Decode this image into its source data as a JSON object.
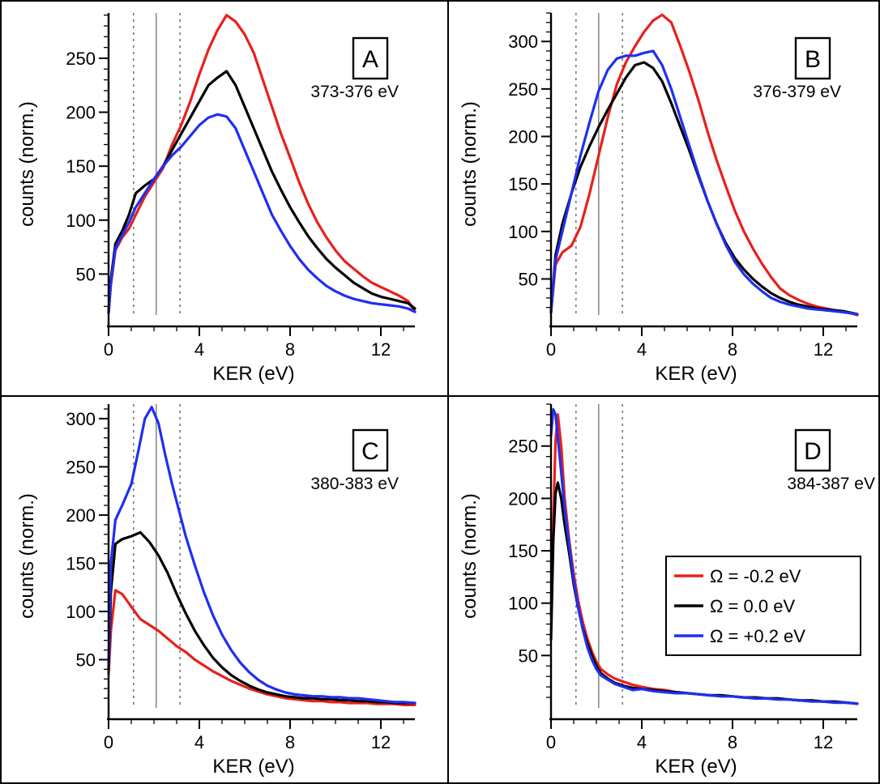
{
  "chart_data": [
    {
      "type": "line",
      "panel_label": "A",
      "energy_range": "373-376 eV",
      "xlabel": "KER (eV)",
      "ylabel": "counts (norm.)",
      "xlim": [
        0,
        13.5
      ],
      "ylim": [
        12,
        292
      ],
      "xticks": [
        0,
        4,
        8,
        12
      ],
      "yticks": [
        50,
        100,
        150,
        200,
        250
      ],
      "reference_lines": {
        "solid": [
          2.1
        ],
        "dotted": [
          1.1,
          3.15
        ]
      },
      "series": [
        {
          "color": "#e8201b",
          "x": [
            0,
            0.1,
            0.3,
            0.6,
            0.9,
            1.2,
            1.6,
            2.0,
            2.4,
            2.8,
            3.2,
            3.6,
            4.0,
            4.4,
            4.8,
            5.2,
            5.6,
            6.0,
            6.4,
            6.8,
            7.2,
            7.6,
            8.0,
            8.4,
            8.8,
            9.2,
            9.6,
            10.0,
            10.4,
            10.8,
            11.2,
            11.6,
            12.0,
            12.4,
            12.8,
            13.2,
            13.5
          ],
          "y": [
            14,
            40,
            72,
            84,
            92,
            105,
            122,
            135,
            148,
            170,
            188,
            210,
            235,
            258,
            276,
            290,
            284,
            272,
            255,
            230,
            205,
            180,
            158,
            135,
            115,
            98,
            84,
            72,
            62,
            55,
            48,
            42,
            38,
            34,
            30,
            25,
            15
          ]
        },
        {
          "color": "#000000",
          "x": [
            0,
            0.1,
            0.3,
            0.6,
            0.9,
            1.2,
            1.6,
            2.0,
            2.4,
            2.8,
            3.2,
            3.6,
            4.0,
            4.4,
            4.8,
            5.2,
            5.6,
            6.0,
            6.4,
            6.8,
            7.2,
            7.6,
            8.0,
            8.4,
            8.8,
            9.2,
            9.6,
            10.0,
            10.4,
            10.8,
            11.2,
            11.6,
            12.0,
            12.4,
            12.8,
            13.2,
            13.5
          ],
          "y": [
            14,
            45,
            78,
            90,
            105,
            125,
            132,
            138,
            150,
            165,
            180,
            195,
            210,
            225,
            232,
            238,
            225,
            205,
            185,
            165,
            145,
            128,
            112,
            98,
            85,
            74,
            64,
            56,
            49,
            42,
            37,
            32,
            29,
            27,
            25,
            23,
            18
          ]
        },
        {
          "color": "#1f2ff0",
          "x": [
            0,
            0.1,
            0.3,
            0.6,
            0.9,
            1.2,
            1.6,
            2.0,
            2.4,
            2.8,
            3.2,
            3.6,
            4.0,
            4.4,
            4.8,
            5.2,
            5.6,
            6.0,
            6.4,
            6.8,
            7.2,
            7.6,
            8.0,
            8.4,
            8.8,
            9.2,
            9.6,
            10.0,
            10.4,
            10.8,
            11.2,
            11.6,
            12.0,
            12.4,
            12.8,
            13.2,
            13.5
          ],
          "y": [
            14,
            42,
            74,
            86,
            98,
            112,
            125,
            138,
            150,
            160,
            168,
            178,
            188,
            195,
            198,
            196,
            185,
            165,
            145,
            125,
            105,
            90,
            76,
            64,
            54,
            46,
            39,
            34,
            30,
            27,
            25,
            23,
            22,
            21,
            20,
            18,
            15
          ]
        }
      ]
    },
    {
      "type": "line",
      "panel_label": "B",
      "energy_range": "376-379 eV",
      "xlabel": "KER (eV)",
      "ylabel": "counts (norm.)",
      "xlim": [
        0,
        13.5
      ],
      "ylim": [
        12,
        330
      ],
      "xticks": [
        0,
        4,
        8,
        12
      ],
      "yticks": [
        50,
        100,
        150,
        200,
        250,
        300
      ],
      "reference_lines": {
        "solid": [
          2.1
        ],
        "dotted": [
          1.1,
          3.15
        ]
      },
      "series": [
        {
          "color": "#e8201b",
          "x": [
            0,
            0.2,
            0.5,
            0.9,
            1.3,
            1.7,
            2.1,
            2.5,
            2.9,
            3.3,
            3.7,
            4.1,
            4.5,
            4.9,
            5.3,
            5.7,
            6.1,
            6.5,
            6.9,
            7.3,
            7.7,
            8.1,
            8.5,
            8.9,
            9.3,
            9.7,
            10.1,
            10.5,
            10.9,
            11.3,
            11.7,
            12.1,
            12.5,
            12.9,
            13.5
          ],
          "y": [
            15,
            65,
            78,
            85,
            105,
            140,
            180,
            220,
            255,
            278,
            295,
            310,
            322,
            328,
            320,
            295,
            268,
            238,
            205,
            175,
            148,
            122,
            100,
            82,
            66,
            52,
            40,
            33,
            28,
            24,
            21,
            19,
            17,
            16,
            12
          ]
        },
        {
          "color": "#000000",
          "x": [
            0,
            0.2,
            0.5,
            0.9,
            1.3,
            1.7,
            2.1,
            2.5,
            2.9,
            3.3,
            3.7,
            4.1,
            4.5,
            4.9,
            5.3,
            5.7,
            6.1,
            6.5,
            6.9,
            7.3,
            7.7,
            8.1,
            8.5,
            8.9,
            9.3,
            9.7,
            10.1,
            10.5,
            10.9,
            11.3,
            11.7,
            12.1,
            12.5,
            12.9,
            13.5
          ],
          "y": [
            15,
            75,
            108,
            140,
            168,
            190,
            210,
            228,
            245,
            262,
            275,
            278,
            272,
            258,
            235,
            210,
            185,
            158,
            132,
            108,
            88,
            72,
            60,
            50,
            42,
            35,
            30,
            26,
            23,
            21,
            19,
            18,
            17,
            16,
            13
          ]
        },
        {
          "color": "#1f2ff0",
          "x": [
            0,
            0.2,
            0.5,
            0.9,
            1.3,
            1.7,
            2.1,
            2.5,
            2.9,
            3.3,
            3.7,
            4.1,
            4.5,
            4.9,
            5.3,
            5.7,
            6.1,
            6.5,
            6.9,
            7.3,
            7.7,
            8.1,
            8.5,
            8.9,
            9.3,
            9.7,
            10.1,
            10.5,
            10.9,
            11.3,
            11.7,
            12.1,
            12.5,
            12.9,
            13.5
          ],
          "y": [
            15,
            70,
            100,
            140,
            180,
            215,
            248,
            270,
            282,
            285,
            285,
            288,
            290,
            275,
            250,
            220,
            190,
            160,
            132,
            108,
            86,
            68,
            55,
            45,
            37,
            30,
            26,
            23,
            21,
            19,
            18,
            17,
            16,
            15,
            13
          ]
        }
      ]
    },
    {
      "type": "line",
      "panel_label": "C",
      "energy_range": "380-383 eV",
      "xlabel": "KER (eV)",
      "ylabel": "counts (norm.)",
      "xlim": [
        0,
        13.5
      ],
      "ylim": [
        0,
        315
      ],
      "xticks": [
        0,
        4,
        8,
        12
      ],
      "yticks": [
        50,
        100,
        150,
        200,
        250,
        300
      ],
      "reference_lines": {
        "solid": [
          2.1
        ],
        "dotted": [
          1.1,
          3.15
        ]
      },
      "series": [
        {
          "color": "#e8201b",
          "x": [
            0,
            0.1,
            0.3,
            0.6,
            1.0,
            1.4,
            1.8,
            2.2,
            2.6,
            3.0,
            3.4,
            3.8,
            4.2,
            4.6,
            5.0,
            5.4,
            5.8,
            6.2,
            6.6,
            7.0,
            7.4,
            7.8,
            8.2,
            8.6,
            9.0,
            9.4,
            9.8,
            10.2,
            10.6,
            11.0,
            11.4,
            11.8,
            12.2,
            12.6,
            13.0,
            13.5
          ],
          "y": [
            35,
            80,
            122,
            118,
            105,
            92,
            86,
            80,
            72,
            64,
            58,
            50,
            44,
            38,
            33,
            28,
            24,
            20,
            17,
            14,
            12,
            10,
            9,
            8,
            7,
            7,
            6,
            6,
            5,
            5,
            5,
            4,
            4,
            4,
            3,
            3
          ]
        },
        {
          "color": "#000000",
          "x": [
            0,
            0.1,
            0.3,
            0.6,
            1.0,
            1.4,
            1.8,
            2.2,
            2.6,
            3.0,
            3.4,
            3.8,
            4.2,
            4.6,
            5.0,
            5.4,
            5.8,
            6.2,
            6.6,
            7.0,
            7.4,
            7.8,
            8.2,
            8.6,
            9.0,
            9.4,
            9.8,
            10.2,
            10.6,
            11.0,
            11.4,
            11.8,
            12.2,
            12.6,
            13.0,
            13.5
          ],
          "y": [
            40,
            120,
            170,
            175,
            178,
            182,
            172,
            158,
            140,
            118,
            98,
            80,
            65,
            52,
            42,
            34,
            28,
            23,
            19,
            16,
            14,
            12,
            11,
            10,
            10,
            9,
            9,
            8,
            8,
            7,
            7,
            6,
            6,
            5,
            5,
            5
          ]
        },
        {
          "color": "#1f2ff0",
          "x": [
            0,
            0.1,
            0.3,
            0.6,
            1.0,
            1.3,
            1.6,
            1.9,
            2.2,
            2.5,
            2.8,
            3.1,
            3.4,
            3.8,
            4.2,
            4.6,
            5.0,
            5.4,
            5.8,
            6.2,
            6.6,
            7.0,
            7.4,
            7.8,
            8.2,
            8.6,
            9.0,
            9.4,
            9.8,
            10.2,
            10.6,
            11.0,
            11.4,
            11.8,
            12.2,
            12.6,
            13.0,
            13.5
          ],
          "y": [
            42,
            150,
            195,
            210,
            232,
            265,
            300,
            312,
            295,
            262,
            232,
            205,
            178,
            148,
            120,
            96,
            76,
            60,
            47,
            37,
            29,
            23,
            19,
            16,
            14,
            13,
            12,
            12,
            11,
            11,
            10,
            10,
            9,
            8,
            7,
            6,
            6,
            5
          ]
        }
      ]
    },
    {
      "type": "line",
      "panel_label": "D",
      "energy_range": "384-387 eV",
      "xlabel": "KER (eV)",
      "ylabel": "counts (norm.)",
      "xlim": [
        0,
        13.5
      ],
      "ylim": [
        0,
        290
      ],
      "xticks": [
        0,
        4,
        8,
        12
      ],
      "yticks": [
        50,
        100,
        150,
        200,
        250
      ],
      "reference_lines": {
        "solid": [
          2.1
        ],
        "dotted": [
          1.1,
          3.15
        ]
      },
      "legend": {
        "position": "right",
        "entries": [
          {
            "label": "Ω = -0.2 eV",
            "color": "#e8201b"
          },
          {
            "label": "Ω = 0.0 eV",
            "color": "#000000"
          },
          {
            "label": "Ω = +0.2 eV",
            "color": "#1f2ff0"
          }
        ]
      },
      "series": [
        {
          "color": "#e8201b",
          "x": [
            0,
            0.1,
            0.2,
            0.3,
            0.45,
            0.6,
            0.8,
            1.0,
            1.2,
            1.4,
            1.6,
            1.8,
            2.0,
            2.2,
            2.5,
            2.8,
            3.2,
            3.6,
            4.0,
            4.5,
            5.0,
            5.5,
            6.0,
            6.5,
            7.0,
            7.5,
            8.0,
            8.5,
            9.0,
            9.5,
            10.0,
            10.5,
            11.0,
            11.5,
            12.0,
            12.5,
            13.0,
            13.5
          ],
          "y": [
            88,
            180,
            255,
            280,
            250,
            200,
            160,
            128,
            102,
            82,
            66,
            54,
            44,
            37,
            32,
            28,
            25,
            22,
            20,
            18,
            17,
            15,
            14,
            13,
            12,
            12,
            11,
            10,
            10,
            9,
            9,
            8,
            7,
            7,
            6,
            5,
            5,
            4
          ]
        },
        {
          "color": "#000000",
          "x": [
            0,
            0.1,
            0.2,
            0.3,
            0.45,
            0.6,
            0.8,
            1.0,
            1.2,
            1.4,
            1.6,
            1.8,
            2.0,
            2.2,
            2.5,
            2.8,
            3.2,
            3.6,
            4.0,
            4.5,
            5.0,
            5.5,
            6.0,
            6.5,
            7.0,
            7.5,
            8.0,
            8.5,
            9.0,
            9.5,
            10.0,
            10.5,
            11.0,
            11.5,
            12.0,
            12.5,
            13.0,
            13.5
          ],
          "y": [
            65,
            160,
            205,
            215,
            200,
            175,
            148,
            118,
            95,
            76,
            62,
            50,
            40,
            33,
            28,
            24,
            21,
            19,
            18,
            17,
            16,
            15,
            14,
            13,
            12,
            12,
            11,
            10,
            10,
            9,
            9,
            8,
            7,
            7,
            6,
            6,
            5,
            4
          ]
        },
        {
          "color": "#1f2ff0",
          "x": [
            0,
            0.1,
            0.2,
            0.3,
            0.45,
            0.6,
            0.8,
            1.0,
            1.2,
            1.4,
            1.6,
            1.8,
            2.0,
            2.2,
            2.5,
            2.8,
            3.2,
            3.6,
            4.0,
            4.5,
            5.0,
            5.5,
            6.0,
            6.5,
            7.0,
            7.5,
            8.0,
            8.5,
            9.0,
            9.5,
            10.0,
            10.5,
            11.0,
            11.5,
            12.0,
            12.5,
            13.0,
            13.5
          ],
          "y": [
            260,
            285,
            280,
            258,
            225,
            190,
            155,
            122,
            96,
            75,
            58,
            46,
            37,
            31,
            27,
            23,
            20,
            17,
            18,
            16,
            15,
            14,
            14,
            13,
            12,
            11,
            11,
            10,
            9,
            9,
            8,
            8,
            7,
            6,
            6,
            5,
            5,
            4
          ]
        }
      ]
    }
  ]
}
